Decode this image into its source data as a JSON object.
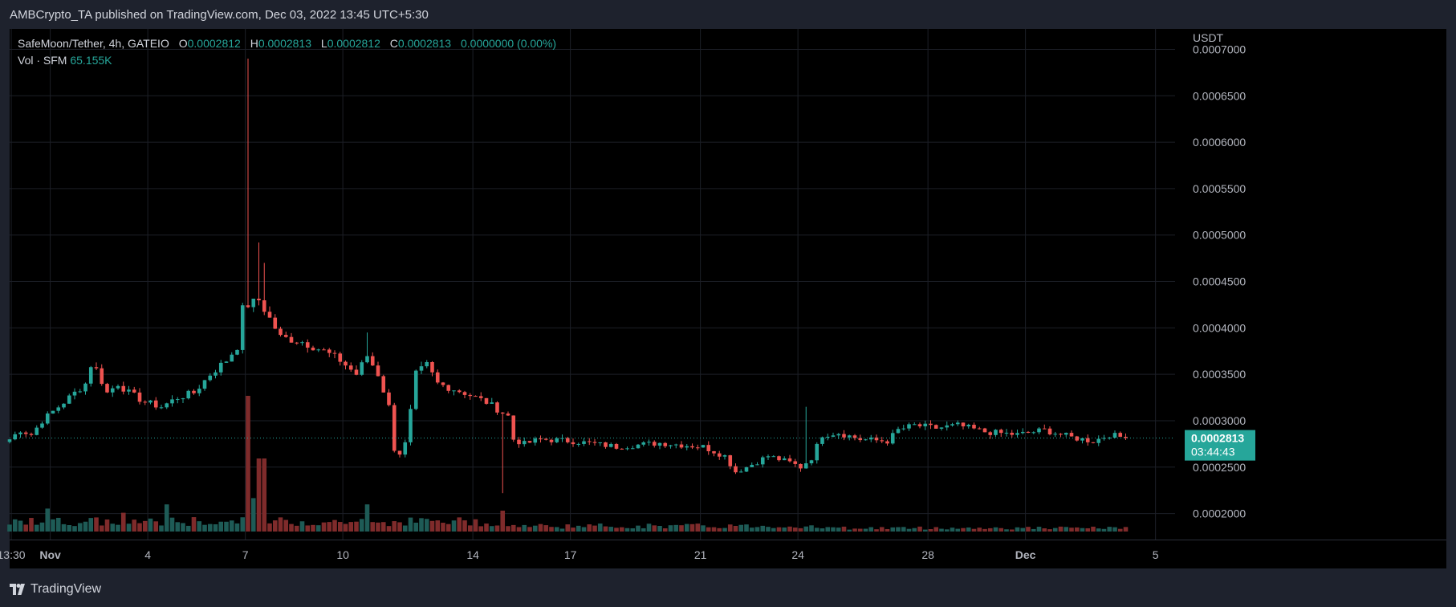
{
  "header": {
    "published": "AMBCrypto_TA published on TradingView.com, Dec 03, 2022 13:45 UTC+5:30"
  },
  "legend": {
    "symbol": "SafeMoon/Tether, 4h, GATEIO",
    "o_label": "O",
    "o_value": "0.0002812",
    "h_label": "H",
    "h_value": "0.0002813",
    "l_label": "L",
    "l_value": "0.0002812",
    "c_label": "C",
    "c_value": "0.0002813",
    "change": "0.0000000 (0.00%)",
    "vol_label": "Vol · SFM",
    "vol_value": "65.155K"
  },
  "price_tag": {
    "price": "0.0002813",
    "countdown": "03:44:43"
  },
  "footer": {
    "brand": "TradingView"
  },
  "colors": {
    "up": "#26a69a",
    "down": "#ef5350",
    "grid": "#1c1f27",
    "bg": "#000000",
    "frame": "#1e222d"
  },
  "chart_data": {
    "type": "candlestick",
    "currency_label": "USDT",
    "y_ticks": [
      "0.0007000",
      "0.0006500",
      "0.0006000",
      "0.0005500",
      "0.0005000",
      "0.0004500",
      "0.0004000",
      "0.0003500",
      "0.0003000",
      "0.0002500",
      "0.0002000"
    ],
    "ylim": [
      0.000172,
      0.000722
    ],
    "x_ticks": [
      {
        "label": "13:30",
        "t": 0.3
      },
      {
        "label": "Nov",
        "t": 7.5,
        "bold": true
      },
      {
        "label": "4",
        "t": 25.5
      },
      {
        "label": "7",
        "t": 43.5
      },
      {
        "label": "10",
        "t": 61.5
      },
      {
        "label": "14",
        "t": 85.5
      },
      {
        "label": "17",
        "t": 103.5
      },
      {
        "label": "21",
        "t": 127.5
      },
      {
        "label": "24",
        "t": 145.5
      },
      {
        "label": "28",
        "t": 169.5
      },
      {
        "label": "Dec",
        "t": 187.5,
        "bold": true
      },
      {
        "label": "5",
        "t": 211.5
      }
    ],
    "last_price": 0.0002813,
    "anchors": [
      [
        0,
        0.00028
      ],
      [
        2,
        0.00029
      ],
      [
        4,
        0.000285
      ],
      [
        6,
        0.0003
      ],
      [
        8,
        0.00031
      ],
      [
        10,
        0.00032
      ],
      [
        12,
        0.00033
      ],
      [
        14,
        0.00034
      ],
      [
        15,
        0.00036
      ],
      [
        16,
        0.000355
      ],
      [
        18,
        0.00033
      ],
      [
        20,
        0.00034
      ],
      [
        22,
        0.00033
      ],
      [
        25,
        0.00032
      ],
      [
        28,
        0.000315
      ],
      [
        31,
        0.000325
      ],
      [
        34,
        0.00033
      ],
      [
        37,
        0.00035
      ],
      [
        40,
        0.000365
      ],
      [
        42,
        0.00038
      ],
      [
        43,
        0.00042
      ],
      [
        44,
        0.000425
      ],
      [
        46,
        0.00043
      ],
      [
        48,
        0.00041
      ],
      [
        50,
        0.00039
      ],
      [
        54,
        0.000385
      ],
      [
        58,
        0.000375
      ],
      [
        61,
        0.000365
      ],
      [
        64,
        0.00035
      ],
      [
        66,
        0.00037
      ],
      [
        68,
        0.00035
      ],
      [
        70,
        0.000315
      ],
      [
        71,
        0.00027
      ],
      [
        72,
        0.000265
      ],
      [
        73,
        0.000275
      ],
      [
        74,
        0.00031
      ],
      [
        75,
        0.00035
      ],
      [
        77,
        0.00036
      ],
      [
        79,
        0.00034
      ],
      [
        84,
        0.00033
      ],
      [
        88,
        0.00032
      ],
      [
        92,
        0.000305
      ],
      [
        93,
        0.00028
      ],
      [
        95,
        0.000275
      ],
      [
        98,
        0.00028
      ],
      [
        104,
        0.000278
      ],
      [
        112,
        0.000272
      ],
      [
        120,
        0.000276
      ],
      [
        128,
        0.000272
      ],
      [
        132,
        0.000262
      ],
      [
        134,
        0.000245
      ],
      [
        136,
        0.00025
      ],
      [
        140,
        0.000262
      ],
      [
        144,
        0.000255
      ],
      [
        146,
        0.00025
      ],
      [
        148,
        0.00026
      ],
      [
        150,
        0.000285
      ],
      [
        153,
        0.000287
      ],
      [
        157,
        0.00028
      ],
      [
        162,
        0.000278
      ],
      [
        164,
        0.00029
      ],
      [
        167,
        0.000295
      ],
      [
        171,
        0.000292
      ],
      [
        175,
        0.000295
      ],
      [
        180,
        0.000288
      ],
      [
        186,
        0.000285
      ],
      [
        191,
        0.00029
      ],
      [
        196,
        0.000282
      ],
      [
        200,
        0.000278
      ],
      [
        203,
        0.000285
      ],
      [
        206,
        0.0002813
      ]
    ],
    "spikes": [
      {
        "i": 44,
        "high": 0.00069
      },
      {
        "i": 46,
        "high": 0.000492
      },
      {
        "i": 47,
        "high": 0.00047
      },
      {
        "i": 66,
        "high": 0.000395
      },
      {
        "i": 91,
        "low": 0.000222
      },
      {
        "i": 147,
        "high": 0.000315
      }
    ],
    "volume_spikes": [
      {
        "i": 44,
        "v": 13
      },
      {
        "i": 46,
        "v": 7
      },
      {
        "i": 47,
        "v": 7
      },
      {
        "i": 45,
        "v": 3.2
      },
      {
        "i": 29,
        "v": 2.6
      },
      {
        "i": 66,
        "v": 2.6
      },
      {
        "i": 91,
        "v": 2.0
      },
      {
        "i": 7,
        "v": 2.2
      },
      {
        "i": 21,
        "v": 1.8
      }
    ]
  }
}
